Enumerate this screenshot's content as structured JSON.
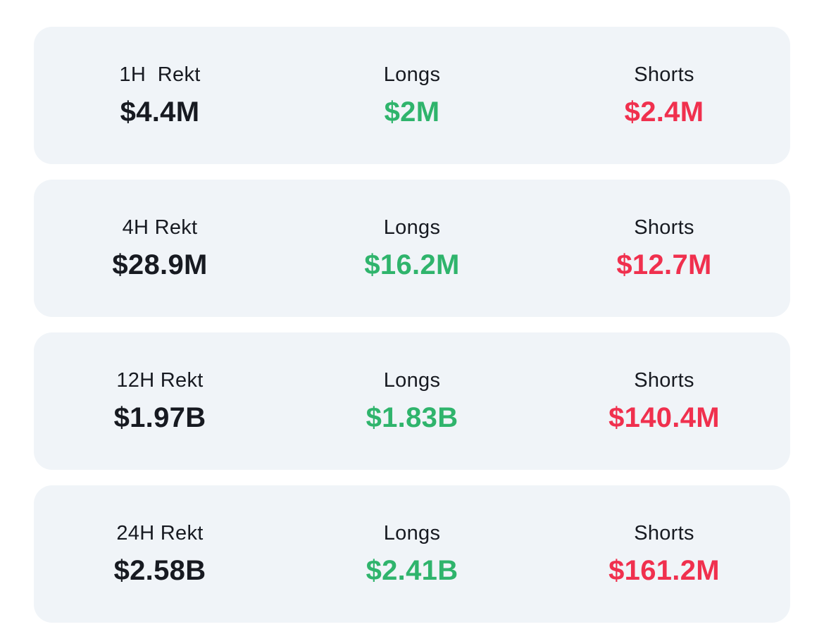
{
  "colors": {
    "page_background": "#ffffff",
    "card_background": "#f0f4f8",
    "dark_text": "#171a21",
    "longs_green": "#2fb46c",
    "shorts_red": "#f0304e"
  },
  "cards": [
    {
      "period_label": "1H  Rekt",
      "rekt_value": "$4.4M",
      "longs_label": "Longs",
      "longs_value": "$2M",
      "shorts_label": "Shorts",
      "shorts_value": "$2.4M"
    },
    {
      "period_label": "4H Rekt",
      "rekt_value": "$28.9M",
      "longs_label": "Longs",
      "longs_value": "$16.2M",
      "shorts_label": "Shorts",
      "shorts_value": "$12.7M"
    },
    {
      "period_label": "12H Rekt",
      "rekt_value": "$1.97B",
      "longs_label": "Longs",
      "longs_value": "$1.83B",
      "shorts_label": "Shorts",
      "shorts_value": "$140.4M"
    },
    {
      "period_label": "24H Rekt",
      "rekt_value": "$2.58B",
      "longs_label": "Longs",
      "longs_value": "$2.41B",
      "shorts_label": "Shorts",
      "shorts_value": "$161.2M"
    }
  ]
}
